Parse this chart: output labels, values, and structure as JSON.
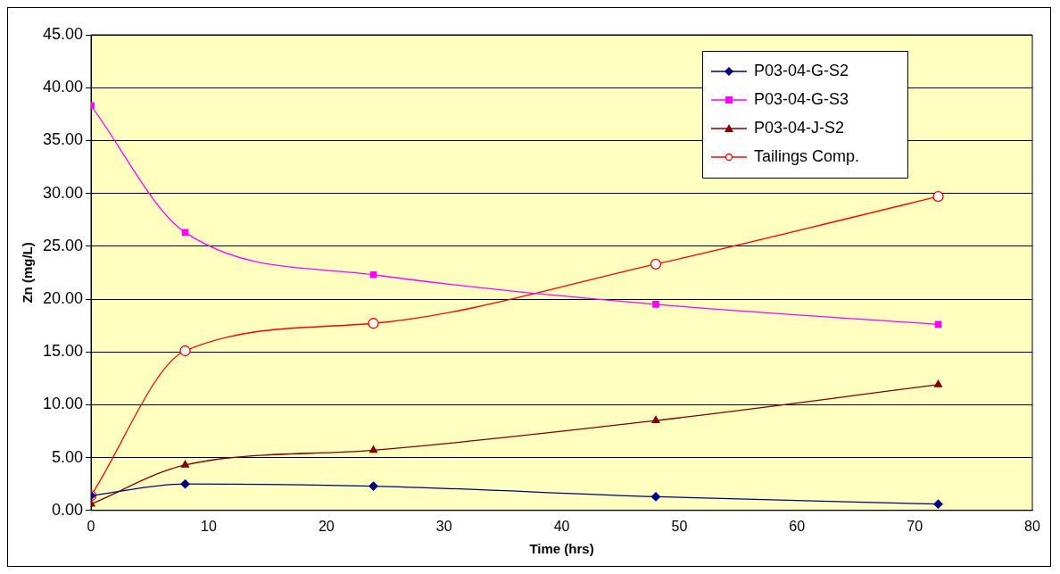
{
  "chart_data": {
    "type": "line",
    "xlabel": "Time (hrs)",
    "ylabel": "Zn (mg/L)",
    "x": [
      0,
      8,
      24,
      48,
      72
    ],
    "xlim": [
      0,
      80
    ],
    "xticks": [
      0,
      10,
      20,
      30,
      40,
      50,
      60,
      70,
      80
    ],
    "ylim": [
      0,
      45
    ],
    "yticks": [
      {
        "value": 0,
        "label": "0.00"
      },
      {
        "value": 5,
        "label": "5.00"
      },
      {
        "value": 10,
        "label": "10.00"
      },
      {
        "value": 15,
        "label": "15.00"
      },
      {
        "value": 20,
        "label": "20.00"
      },
      {
        "value": 25,
        "label": "25.00"
      },
      {
        "value": 30,
        "label": "30.00"
      },
      {
        "value": 35,
        "label": "35.00"
      },
      {
        "value": 40,
        "label": "40.00"
      },
      {
        "value": 45,
        "label": "45.00"
      }
    ],
    "grid": "y",
    "legend": "top right",
    "series": [
      {
        "name": "P03-04-G-S2",
        "color": "#000080",
        "marker": "diamond",
        "values": [
          1.4,
          2.5,
          2.3,
          1.3,
          0.6
        ]
      },
      {
        "name": "P03-04-G-S3",
        "color": "#ff00ff",
        "marker": "square",
        "values": [
          38.3,
          26.3,
          22.3,
          19.5,
          17.6
        ]
      },
      {
        "name": "P03-04-J-S2",
        "color": "#800000",
        "marker": "triangle",
        "values": [
          0.6,
          4.3,
          5.7,
          8.5,
          11.9
        ]
      },
      {
        "name": "Tailings Comp.",
        "color": "#ff0000",
        "marker": "circle",
        "values": [
          1.4,
          15.1,
          17.7,
          23.3,
          29.7
        ]
      }
    ]
  }
}
